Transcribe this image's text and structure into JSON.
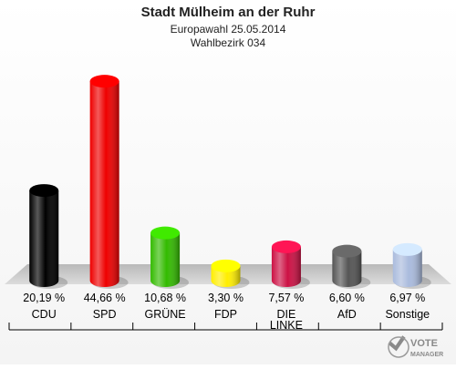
{
  "chart_data": {
    "type": "bar",
    "title": "Stadt Mülheim an der Ruhr",
    "subtitle": "Europawahl 25.05.2014",
    "subtitle2": "Wahlbezirk 034",
    "categories": [
      {
        "lines": [
          "CDU"
        ]
      },
      {
        "lines": [
          "SPD"
        ]
      },
      {
        "lines": [
          "GRÜNE"
        ]
      },
      {
        "lines": [
          "FDP"
        ]
      },
      {
        "lines": [
          "DIE",
          "LINKE"
        ]
      },
      {
        "lines": [
          "AfD"
        ]
      },
      {
        "lines": [
          "Sonstige"
        ]
      }
    ],
    "values": [
      20.19,
      44.66,
      10.68,
      3.3,
      7.57,
      6.6,
      6.97
    ],
    "value_labels": [
      "20,19 %",
      "44,66 %",
      "10,68 %",
      "3,30 %",
      "7,57 %",
      "6,60 %",
      "6,97 %"
    ],
    "colors": [
      "#000000",
      "#ee0000",
      "#33bb00",
      "#ffee00",
      "#cc1144",
      "#555555",
      "#aabbdd"
    ],
    "ylim": [
      0,
      50
    ],
    "grid": false,
    "legend": "none"
  },
  "logo": {
    "line1": "VOTE",
    "line2": "MANAGER"
  }
}
